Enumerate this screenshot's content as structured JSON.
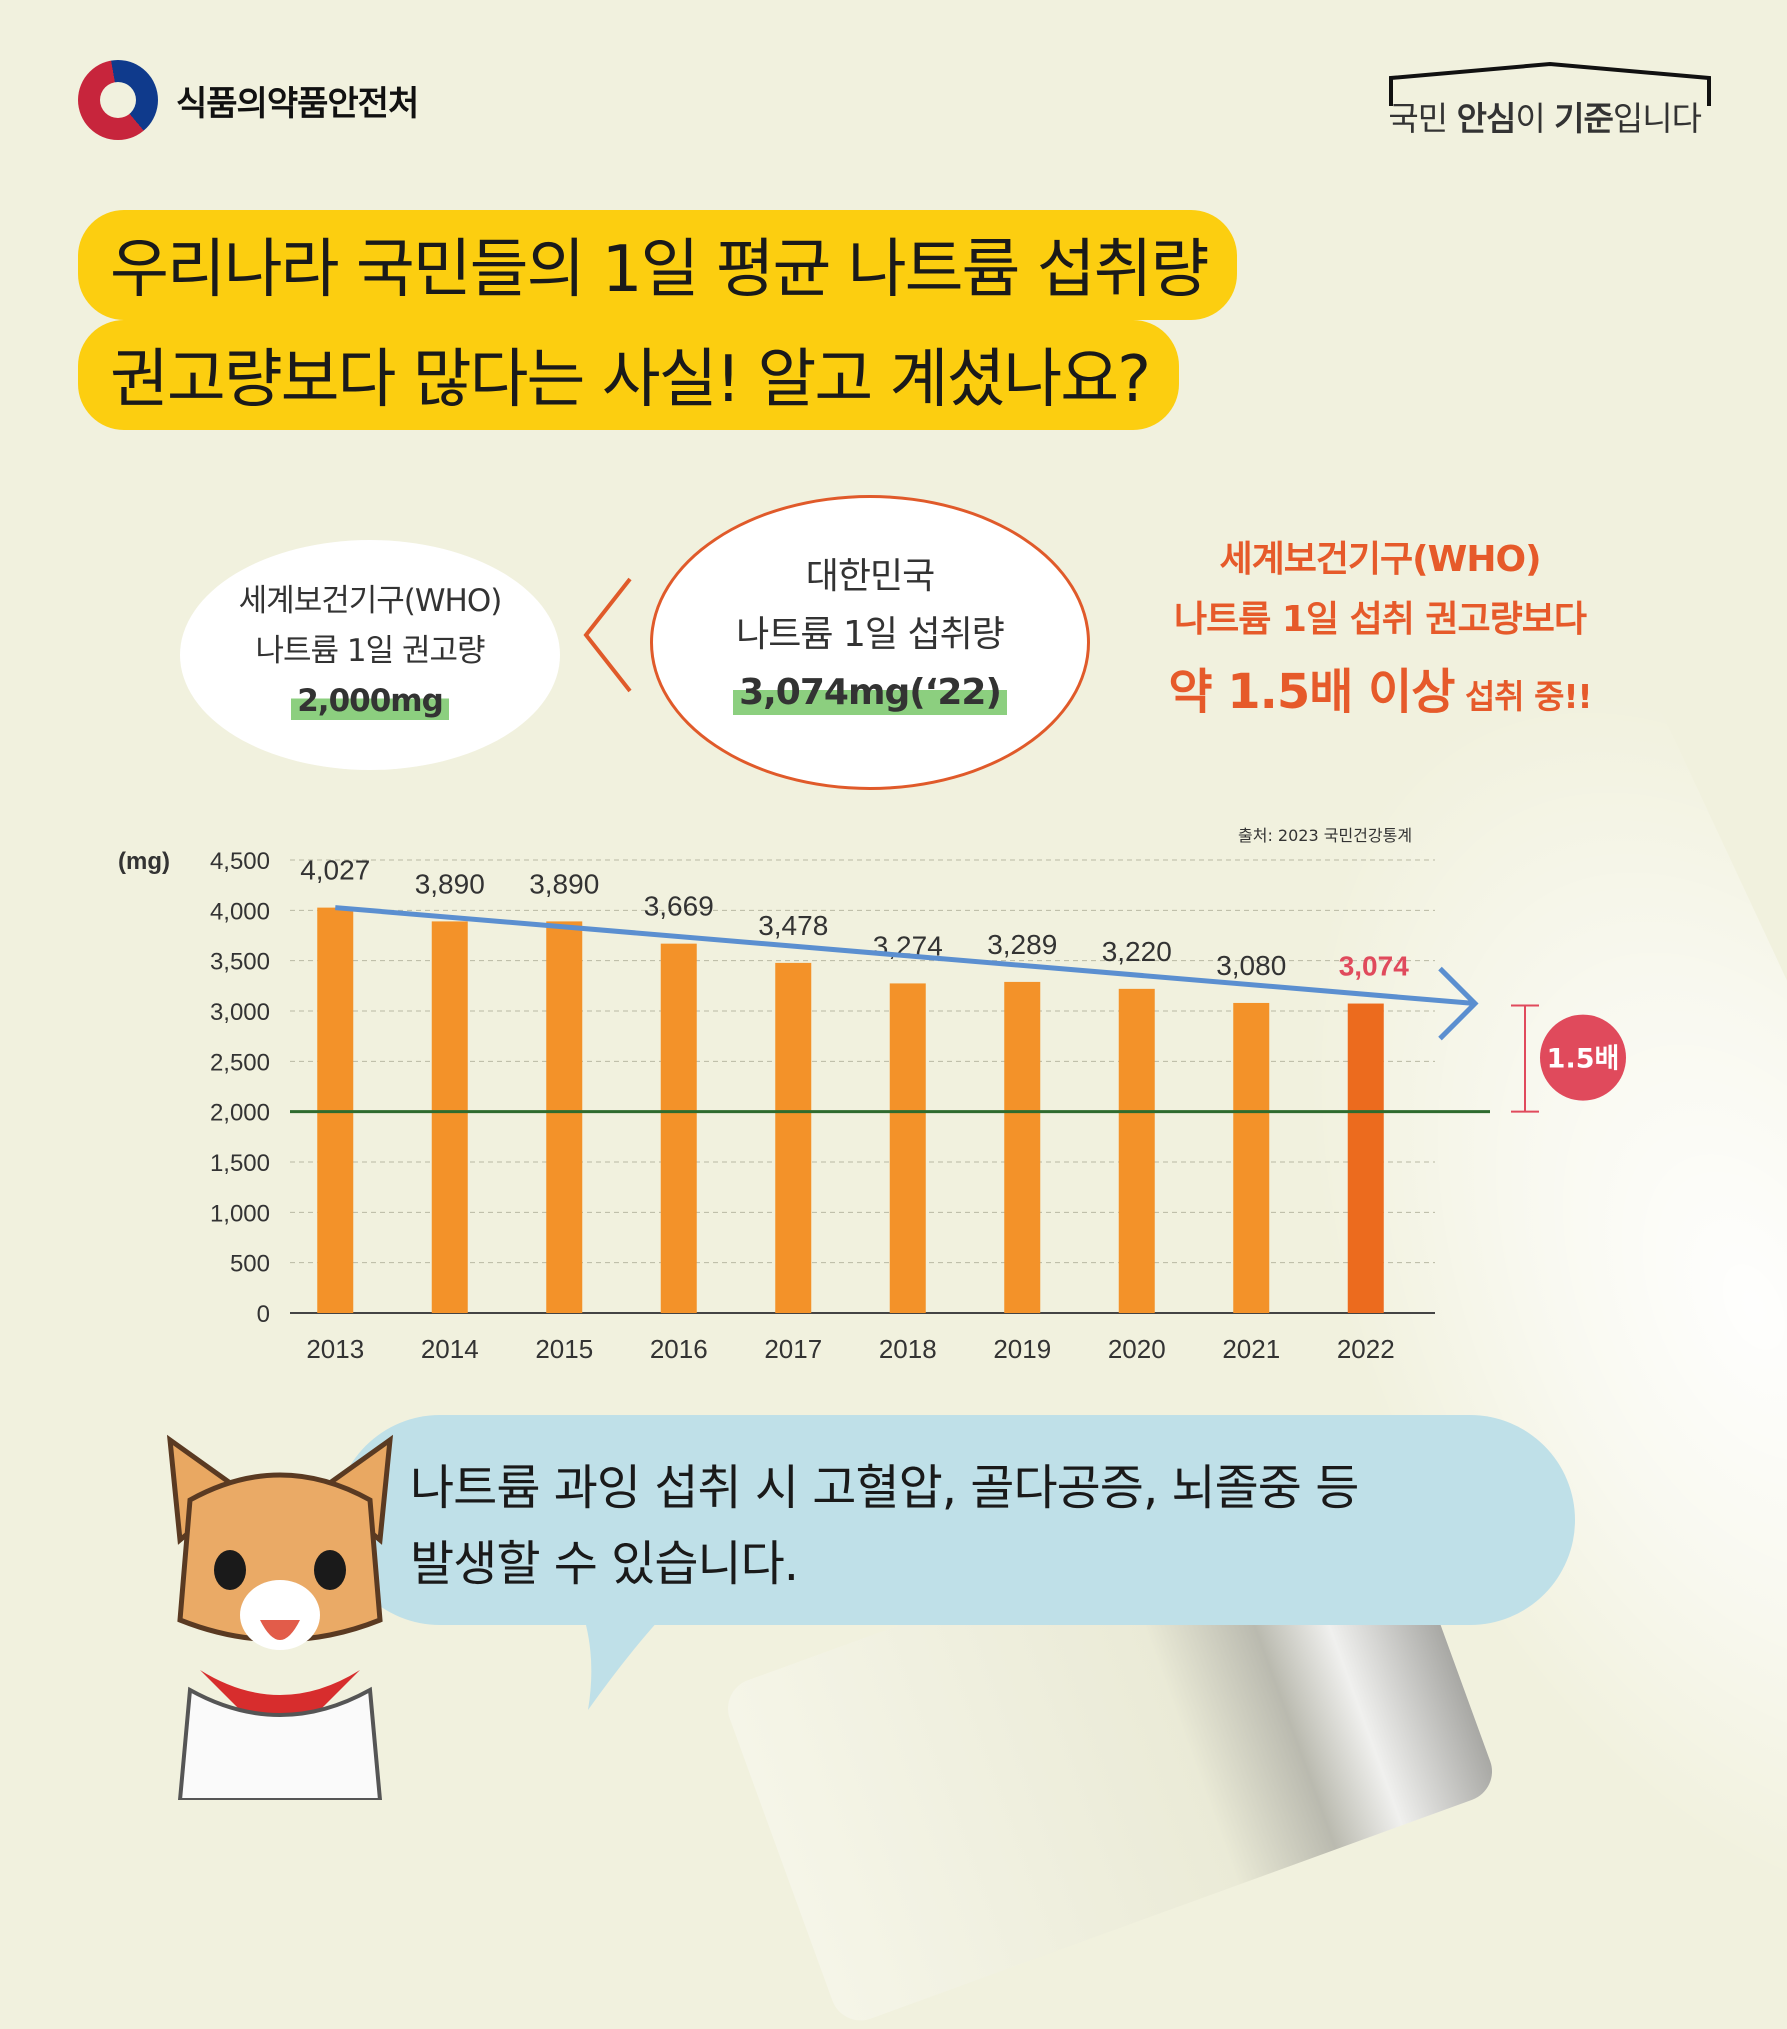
{
  "header": {
    "org_name": "식품의약품안전처",
    "slogan_pre": "국민 ",
    "slogan_bold1": "안심",
    "slogan_mid": "이 ",
    "slogan_bold2": "기준",
    "slogan_post": "입니다"
  },
  "title": {
    "line1": "우리나라 국민들의 1일 평균 나트륨 섭취량",
    "line2": "권고량보다 많다는 사실! 알고 계셨나요?"
  },
  "who_bubble": {
    "line1": "세계보건기구(WHO)",
    "line2": "나트륨 1일 권고량",
    "value": "2,000mg"
  },
  "korea_bubble": {
    "line1": "대한민국",
    "line2": "나트륨 1일 섭취량",
    "value": "3,074mg(‘22)"
  },
  "who_note": {
    "line1": "세계보건기구(WHO)",
    "line2": "나트륨 1일 섭취 권고량보다",
    "emphasis": "약 1.5배 이상",
    "suffix": " 섭취 중!!"
  },
  "source": "출처: 2023 국민건강통계",
  "chart_data": {
    "type": "bar",
    "ylabel": "(mg)",
    "ylim": [
      0,
      4500
    ],
    "yticks": [
      "0",
      "500",
      "1,000",
      "1,500",
      "2,000",
      "2,500",
      "3,000",
      "3,500",
      "4,000",
      "4,500"
    ],
    "categories": [
      "2013",
      "2014",
      "2015",
      "2016",
      "2017",
      "2018",
      "2019",
      "2020",
      "2021",
      "2022"
    ],
    "values": [
      4027,
      3890,
      3890,
      3669,
      3478,
      3274,
      3289,
      3220,
      3080,
      3074
    ],
    "value_labels": [
      "4,027",
      "3,890",
      "3,890",
      "3,669",
      "3,478",
      "3,274",
      "3,289",
      "3,220",
      "3,080",
      "3,074"
    ],
    "reference_line": 2000,
    "ratio_label": "1.5배",
    "grid": true,
    "colors": {
      "bar": "#f39229",
      "highlight_bar": "#ec6b1e",
      "highlight_label": "#e04a5c",
      "trend": "#5b8fd0",
      "reference": "#2e6b2e",
      "ratio_badge": "#e04a5c"
    }
  },
  "speech": {
    "line1": "나트륨 과잉 섭취 시 고혈압, 골다공증, 뇌졸중 등",
    "line2": "발생할 수 있습니다."
  }
}
